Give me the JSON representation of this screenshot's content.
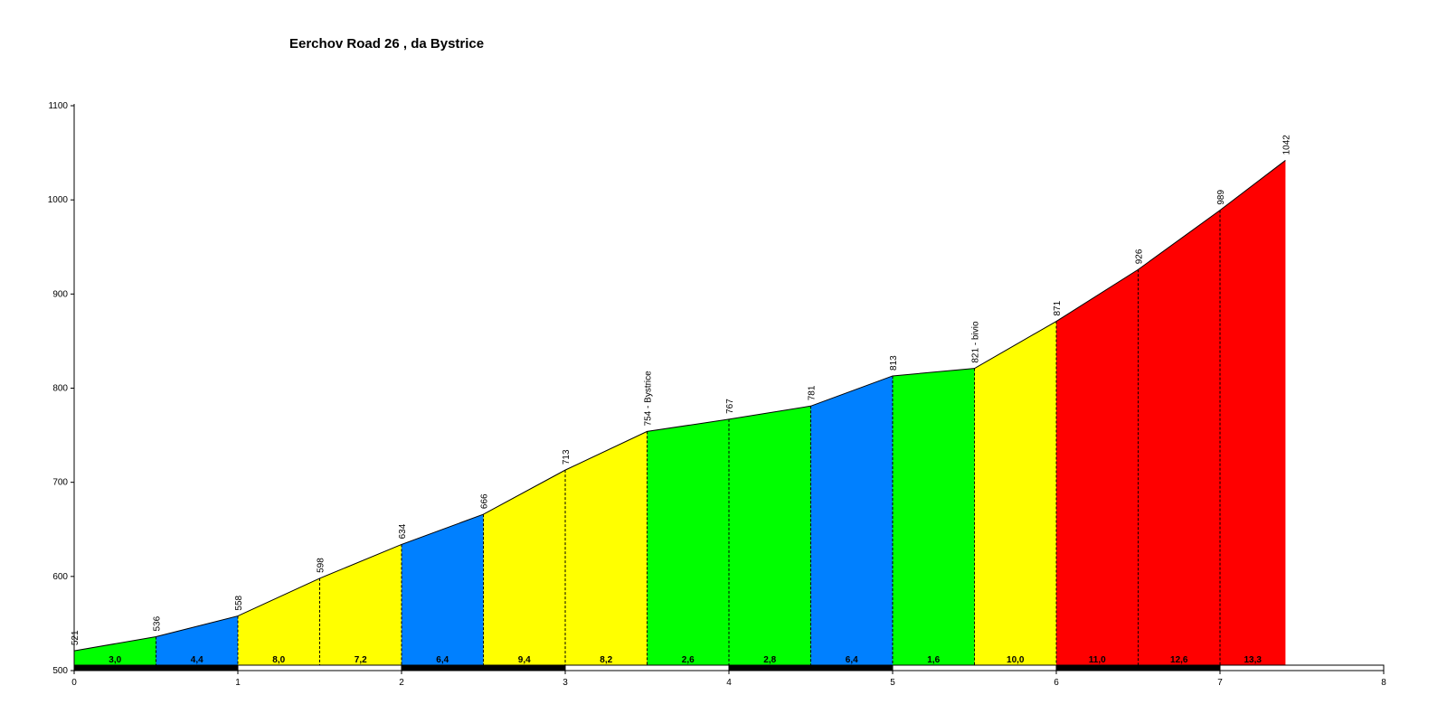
{
  "chart_data": {
    "type": "area",
    "title": "Eerchov Road 26 , da Bystrice",
    "xlabel": "",
    "ylabel": "",
    "xlim": [
      0,
      8
    ],
    "ylim": [
      500,
      1100
    ],
    "x_ticks": [
      "0",
      "1",
      "2",
      "3",
      "4",
      "5",
      "6",
      "7",
      "8"
    ],
    "y_ticks": [
      "500",
      "600",
      "700",
      "800",
      "900",
      "1000",
      "1100"
    ],
    "grid": false,
    "points": [
      {
        "x": 0.0,
        "y": 521,
        "label": "521"
      },
      {
        "x": 0.5,
        "y": 536,
        "label": "536"
      },
      {
        "x": 1.0,
        "y": 558,
        "label": "558"
      },
      {
        "x": 1.5,
        "y": 598,
        "label": "598"
      },
      {
        "x": 2.0,
        "y": 634,
        "label": "634"
      },
      {
        "x": 2.5,
        "y": 666,
        "label": "666"
      },
      {
        "x": 3.0,
        "y": 713,
        "label": "713"
      },
      {
        "x": 3.5,
        "y": 754,
        "label": "754 - Bystrice"
      },
      {
        "x": 4.0,
        "y": 767,
        "label": "767"
      },
      {
        "x": 4.5,
        "y": 781,
        "label": "781"
      },
      {
        "x": 5.0,
        "y": 813,
        "label": "813"
      },
      {
        "x": 5.5,
        "y": 821,
        "label": "821 - bivio"
      },
      {
        "x": 6.0,
        "y": 871,
        "label": "871"
      },
      {
        "x": 6.5,
        "y": 926,
        "label": "926"
      },
      {
        "x": 7.0,
        "y": 989,
        "label": "989"
      },
      {
        "x": 7.4,
        "y": 1042,
        "label": "1042"
      }
    ],
    "segments": [
      {
        "grade": "3,0",
        "color": "#00ff00"
      },
      {
        "grade": "4,4",
        "color": "#0080ff"
      },
      {
        "grade": "8,0",
        "color": "#ffff00"
      },
      {
        "grade": "7,2",
        "color": "#ffff00"
      },
      {
        "grade": "6,4",
        "color": "#0080ff"
      },
      {
        "grade": "9,4",
        "color": "#ffff00"
      },
      {
        "grade": "8,2",
        "color": "#ffff00"
      },
      {
        "grade": "2,6",
        "color": "#00ff00"
      },
      {
        "grade": "2,8",
        "color": "#00ff00"
      },
      {
        "grade": "6,4",
        "color": "#0080ff"
      },
      {
        "grade": "1,6",
        "color": "#00ff00"
      },
      {
        "grade": "10,0",
        "color": "#ffff00"
      },
      {
        "grade": "11,0",
        "color": "#ff0000"
      },
      {
        "grade": "12,6",
        "color": "#ff0000"
      },
      {
        "grade": "13,3",
        "color": "#ff0000"
      }
    ],
    "colors": {
      "green": "#00ff00",
      "blue": "#0080ff",
      "yellow": "#ffff00",
      "red": "#ff0000",
      "line": "#000000",
      "background": "#ffffff"
    }
  }
}
